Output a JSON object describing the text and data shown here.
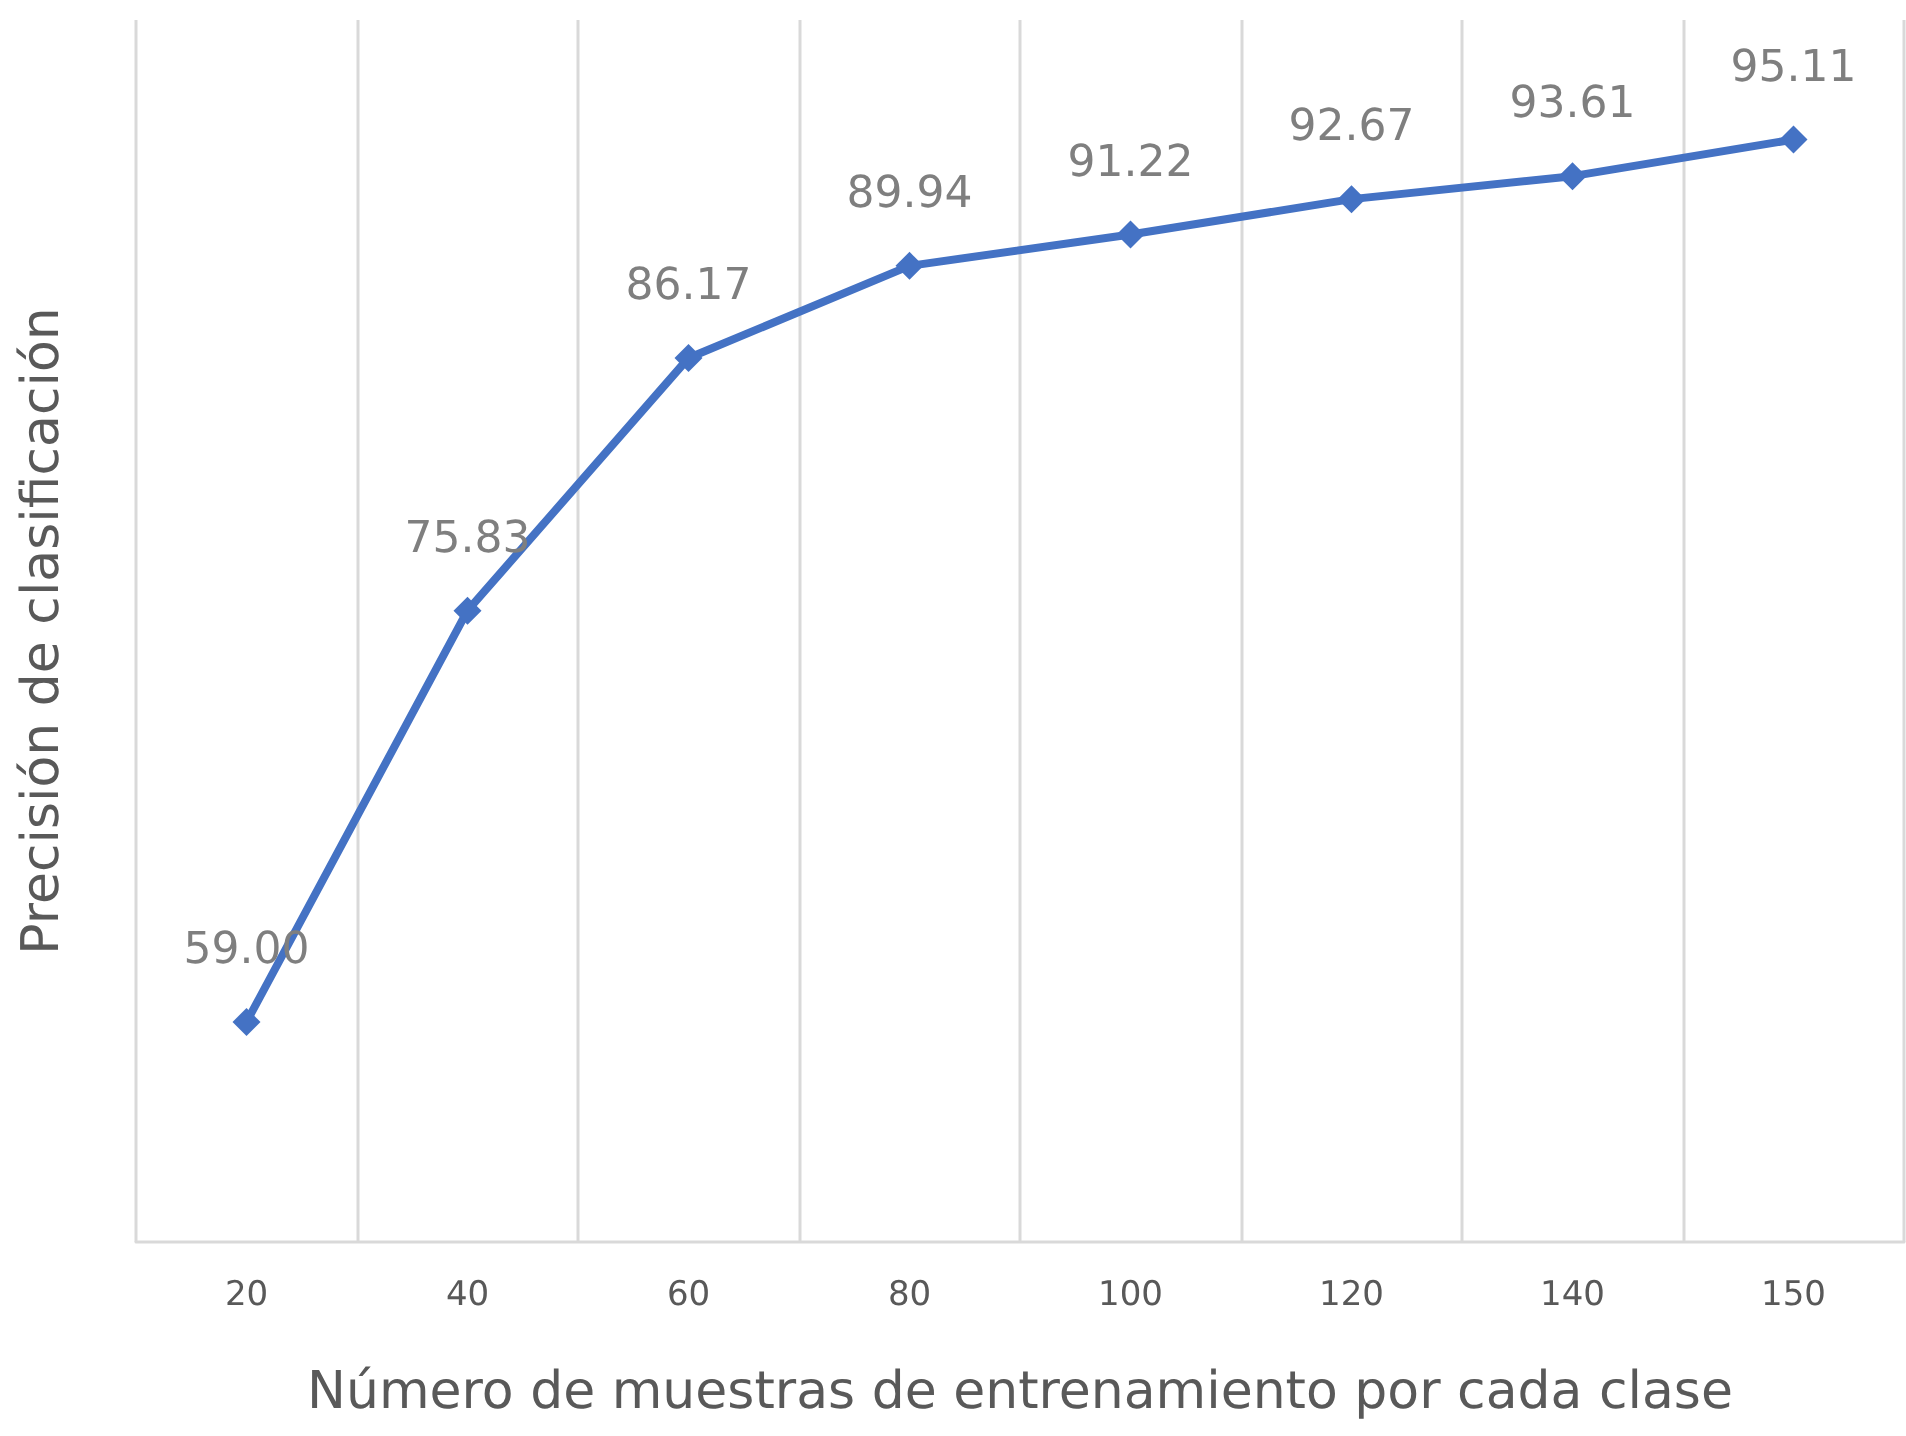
{
  "chart_data": {
    "type": "line",
    "xlabel": "Número de muestras de entrenamiento por cada clase",
    "ylabel": "Precisión de clasificación",
    "categories": [
      "20",
      "40",
      "60",
      "80",
      "100",
      "120",
      "140",
      "150"
    ],
    "series": [
      {
        "color": "#4472c4",
        "values": [
          59.0,
          75.83,
          86.17,
          89.94,
          91.22,
          92.67,
          93.61,
          95.11
        ],
        "value_labels": [
          "59.00",
          "75.83",
          "86.17",
          "89.94",
          "91.22",
          "92.67",
          "93.61",
          "95.11"
        ]
      }
    ],
    "ylim": [
      50,
      100
    ],
    "tick_labels": "x",
    "grid": "x",
    "marker": "diamond",
    "line_style": "solid"
  }
}
